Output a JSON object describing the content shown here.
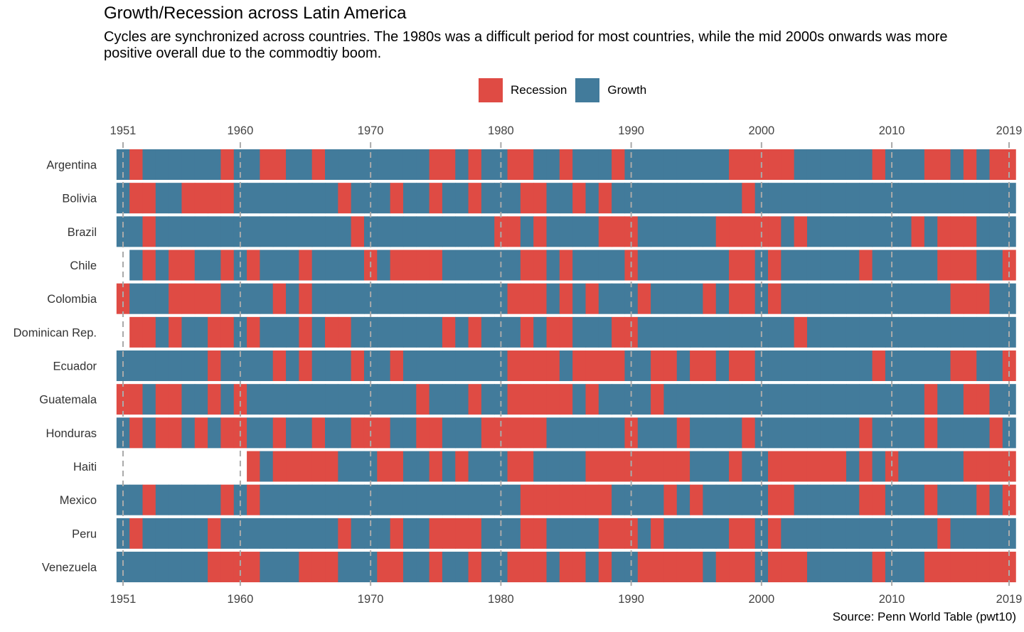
{
  "title": "Growth/Recession across Latin America",
  "subtitle": "Cycles are synchronized across countries. The 1980s was a difficult period for most countries, while the mid 2000s onwards was more positive overall due to the commodtiy boom.",
  "source": "Source: Penn World Table (pwt10)",
  "chart_data": {
    "type": "heatmap",
    "title": "Growth/Recession across Latin America",
    "xlim": [
      1951,
      2019
    ],
    "x_ticks": [
      1951,
      1960,
      1970,
      1980,
      1990,
      2000,
      2010,
      2019
    ],
    "x_tick_labels": [
      "1951",
      "1960",
      "1970",
      "1980",
      "1990",
      "2000",
      "2010",
      "2019"
    ],
    "x_axis_position": "top and bottom",
    "grid": "dashed vertical at ticks",
    "legend": {
      "placement": "top",
      "entries": [
        {
          "label": "Recession",
          "color": "#DF4B44"
        },
        {
          "label": "Growth",
          "color": "#427B9B"
        }
      ]
    },
    "countries": [
      {
        "name": "Argentina",
        "start": 1951,
        "recession_years": [
          1952,
          1959,
          1962,
          1963,
          1966,
          1975,
          1976,
          1978,
          1981,
          1982,
          1985,
          1989,
          1998,
          1999,
          2000,
          2001,
          2002,
          2009,
          2013,
          2014,
          2016,
          2018,
          2019
        ]
      },
      {
        "name": "Bolivia",
        "start": 1951,
        "recession_years": [
          1952,
          1953,
          1956,
          1957,
          1958,
          1959,
          1968,
          1972,
          1975,
          1978,
          1982,
          1983,
          1986,
          1988,
          1999
        ]
      },
      {
        "name": "Brazil",
        "start": 1951,
        "recession_years": [
          1953,
          1969,
          1980,
          1981,
          1983,
          1988,
          1989,
          1990,
          1997,
          1998,
          1999,
          2000,
          2001,
          2003,
          2012,
          2014,
          2015,
          2016
        ]
      },
      {
        "name": "Chile",
        "start": 1952,
        "recession_years": [
          1953,
          1955,
          1956,
          1959,
          1961,
          1965,
          1970,
          1972,
          1973,
          1974,
          1975,
          1982,
          1983,
          1985,
          1990,
          1998,
          1999,
          2001,
          2008,
          2014,
          2015,
          2016,
          2019
        ]
      },
      {
        "name": "Colombia",
        "start": 1951,
        "recession_years": [
          1951,
          1955,
          1956,
          1957,
          1958,
          1963,
          1965,
          1981,
          1982,
          1983,
          1985,
          1987,
          1991,
          1996,
          1998,
          1999,
          2001,
          2015,
          2016,
          2017
        ]
      },
      {
        "name": "Dominican Rep.",
        "start": 1952,
        "recession_years": [
          1952,
          1953,
          1955,
          1958,
          1959,
          1961,
          1965,
          1967,
          1968,
          1976,
          1978,
          1982,
          1984,
          1985,
          1989,
          1990,
          2003
        ]
      },
      {
        "name": "Ecuador",
        "start": 1951,
        "recession_years": [
          1958,
          1963,
          1965,
          1969,
          1972,
          1981,
          1982,
          1983,
          1984,
          1986,
          1987,
          1988,
          1989,
          1992,
          1993,
          1995,
          1996,
          1998,
          1999,
          2009,
          2015,
          2016,
          2019
        ]
      },
      {
        "name": "Guatemala",
        "start": 1951,
        "recession_years": [
          1951,
          1952,
          1954,
          1955,
          1958,
          1960,
          1974,
          1978,
          1981,
          1982,
          1983,
          1984,
          1985,
          1987,
          1992,
          2013,
          2016,
          2017
        ]
      },
      {
        "name": "Honduras",
        "start": 1951,
        "recession_years": [
          1952,
          1954,
          1955,
          1957,
          1959,
          1960,
          1963,
          1966,
          1969,
          1970,
          1971,
          1974,
          1975,
          1979,
          1980,
          1981,
          1982,
          1983,
          1990,
          1994,
          1999,
          2008,
          2013,
          2018
        ]
      },
      {
        "name": "Haiti",
        "start": 1961,
        "recession_years": [
          1961,
          1963,
          1964,
          1965,
          1966,
          1967,
          1971,
          1972,
          1975,
          1977,
          1981,
          1982,
          1987,
          1988,
          1989,
          1990,
          1991,
          1992,
          1993,
          1994,
          1998,
          2001,
          2002,
          2003,
          2004,
          2005,
          2006,
          2008,
          2010,
          2016,
          2017,
          2018,
          2019
        ]
      },
      {
        "name": "Mexico",
        "start": 1951,
        "recession_years": [
          1953,
          1959,
          1961,
          1982,
          1983,
          1984,
          1985,
          1986,
          1987,
          1988,
          1993,
          1995,
          2001,
          2002,
          2008,
          2009,
          2013,
          2017,
          2019
        ]
      },
      {
        "name": "Peru",
        "start": 1951,
        "recession_years": [
          1952,
          1958,
          1968,
          1972,
          1975,
          1976,
          1977,
          1978,
          1982,
          1983,
          1988,
          1989,
          1990,
          1992,
          1998,
          1999,
          2001,
          2014
        ]
      },
      {
        "name": "Venezuela",
        "start": 1951,
        "recession_years": [
          1958,
          1959,
          1960,
          1961,
          1965,
          1966,
          1967,
          1971,
          1972,
          1975,
          1978,
          1981,
          1982,
          1983,
          1985,
          1986,
          1988,
          1991,
          1992,
          1993,
          1994,
          1995,
          1997,
          1998,
          1999,
          2001,
          2002,
          2003,
          2009,
          2013,
          2014,
          2015,
          2016,
          2017,
          2018,
          2019
        ]
      }
    ]
  }
}
